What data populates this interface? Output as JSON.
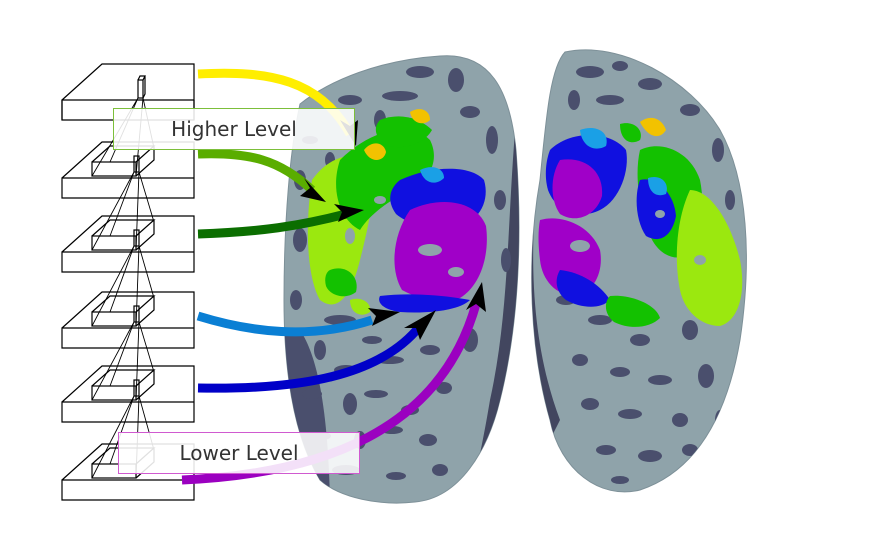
{
  "labels": {
    "higher": "Higher Level",
    "lower": "Lower Level"
  },
  "colors": {
    "arrow_layer_1": "#ffee00",
    "arrow_layer_2": "#5aad00",
    "arrow_layer_3": "#0b6e00",
    "arrow_layer_4": "#0a7fd4",
    "arrow_layer_5": "#0000c8",
    "arrow_layer_6": "#9b00c0",
    "higher_box_border": "#7cbf3a",
    "lower_box_border": "#d05ad0",
    "cortex_base": "#8fa3aa",
    "sulci": "#4a4f6d",
    "roi_yellow": "#f2c200",
    "roi_lime": "#9be80f",
    "roi_green": "#13c100",
    "roi_cyan": "#1aa0e6",
    "roi_blue": "#1010e0",
    "roi_purple": "#a000c8"
  },
  "layers": [
    "layer-1",
    "layer-2",
    "layer-3",
    "layer-4",
    "layer-5",
    "layer-6"
  ]
}
